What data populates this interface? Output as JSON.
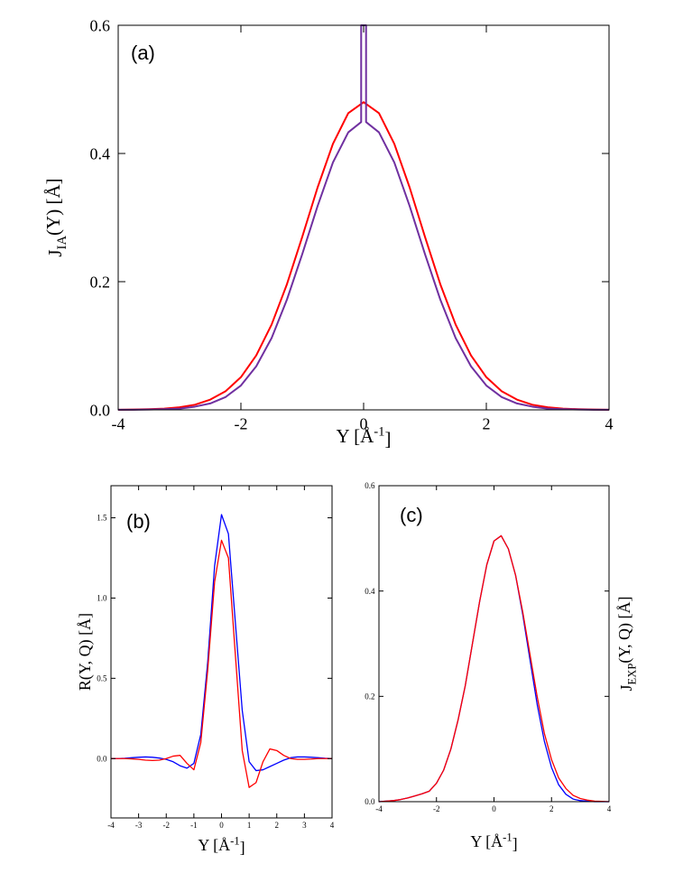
{
  "chart_data": [
    {
      "type": "line",
      "annotation": "(a)",
      "xlabel": [
        "Y [Å",
        "-1",
        "]"
      ],
      "ylabel": [
        "J",
        "IA",
        "(Y) [Å]"
      ],
      "xlim": [
        -4,
        4
      ],
      "ylim": [
        0,
        0.6
      ],
      "xticks": [
        -4,
        -2,
        0,
        2,
        4
      ],
      "yticks": [
        {
          "value": 0,
          "label": "0.0"
        },
        {
          "value": 0.2,
          "label": "0.2"
        },
        {
          "value": 0.4,
          "label": "0.4"
        },
        {
          "value": 0.6,
          "label": "0.6"
        }
      ],
      "x": [
        -4,
        -3.75,
        -3.5,
        -3.25,
        -3,
        -2.75,
        -2.5,
        -2.25,
        -2,
        -1.75,
        -1.5,
        -1.25,
        -1,
        -0.75,
        -0.5,
        -0.25,
        0,
        0.25,
        0.5,
        0.75,
        1,
        1.25,
        1.5,
        1.75,
        2,
        2.25,
        2.5,
        2.75,
        3,
        3.25,
        3.5,
        3.75,
        4
      ],
      "series": [
        {
          "color": "#ff0000",
          "values": [
            0.0002,
            0.0005,
            0.001,
            0.002,
            0.004,
            0.008,
            0.016,
            0.029,
            0.051,
            0.085,
            0.133,
            0.196,
            0.27,
            0.347,
            0.415,
            0.463,
            0.48,
            0.463,
            0.415,
            0.347,
            0.27,
            0.196,
            0.133,
            0.085,
            0.051,
            0.029,
            0.016,
            0.008,
            0.004,
            0.002,
            0.001,
            0.0005,
            0.0002
          ]
        },
        {
          "color": "#7030a0",
          "x": [
            -4,
            -3.75,
            -3.5,
            -3.25,
            -3,
            -2.75,
            -2.5,
            -2.25,
            -2,
            -1.75,
            -1.5,
            -1.25,
            -1,
            -0.75,
            -0.5,
            -0.25,
            -0.04,
            -0.04,
            0.04,
            0.04,
            0.25,
            0.5,
            0.75,
            1,
            1.25,
            1.5,
            1.75,
            2,
            2.25,
            2.5,
            2.75,
            3,
            3.25,
            3.5,
            3.75,
            4
          ],
          "values": [
            0.0001,
            0.0002,
            0.0005,
            0.001,
            0.002,
            0.005,
            0.01,
            0.02,
            0.038,
            0.068,
            0.112,
            0.172,
            0.243,
            0.318,
            0.386,
            0.433,
            0.449,
            0.6,
            0.6,
            0.449,
            0.433,
            0.386,
            0.318,
            0.243,
            0.172,
            0.112,
            0.068,
            0.038,
            0.02,
            0.01,
            0.005,
            0.002,
            0.001,
            0.0005,
            0.0002,
            0.0001
          ]
        }
      ]
    },
    {
      "type": "line",
      "annotation": "(b)",
      "xlabel": [
        "Y [Å",
        "-1",
        "]"
      ],
      "ylabel": [
        "R(Y, Q) [Å]"
      ],
      "xlim": [
        -4,
        4
      ],
      "ylim": [
        -0.37,
        1.7
      ],
      "xticks": [
        -4,
        -3,
        -2,
        -1,
        0,
        1,
        2,
        3,
        4
      ],
      "yticks": [
        {
          "value": 0,
          "label": "0.0"
        },
        {
          "value": 0.5,
          "label": "0.5"
        },
        {
          "value": 1,
          "label": "1.0"
        },
        {
          "value": 1.5,
          "label": "1.5"
        }
      ],
      "x": [
        -4,
        -3.75,
        -3.5,
        -3.25,
        -3,
        -2.75,
        -2.5,
        -2.25,
        -2,
        -1.75,
        -1.5,
        -1.25,
        -1,
        -0.75,
        -0.5,
        -0.25,
        0,
        0.25,
        0.5,
        0.75,
        1,
        1.25,
        1.5,
        1.75,
        2,
        2.25,
        2.5,
        2.75,
        3,
        3.25,
        3.5,
        3.75,
        4
      ],
      "series": [
        {
          "color": "#0000ff",
          "values": [
            0,
            0,
            0.002,
            0.005,
            0.008,
            0.01,
            0.008,
            0.003,
            -0.005,
            -0.02,
            -0.045,
            -0.06,
            -0.03,
            0.15,
            0.6,
            1.2,
            1.52,
            1.4,
            0.85,
            0.3,
            -0.02,
            -0.075,
            -0.07,
            -0.05,
            -0.03,
            -0.01,
            0.005,
            0.01,
            0.01,
            0.008,
            0.005,
            0.002,
            0
          ]
        },
        {
          "color": "#ff0000",
          "values": [
            0,
            0,
            0,
            -0.002,
            -0.005,
            -0.01,
            -0.012,
            -0.01,
            0,
            0.015,
            0.02,
            -0.03,
            -0.07,
            0.1,
            0.55,
            1.1,
            1.36,
            1.25,
            0.65,
            0.05,
            -0.18,
            -0.15,
            -0.02,
            0.06,
            0.05,
            0.02,
            0,
            -0.005,
            -0.005,
            -0.003,
            0,
            0,
            0
          ]
        }
      ]
    },
    {
      "type": "line",
      "annotation": "(c)",
      "xlabel": [
        "Y [Å",
        "-1",
        "]"
      ],
      "ylabel": [
        "J",
        "EXP",
        "(Y, Q) [Å]"
      ],
      "xlim": [
        -4,
        4
      ],
      "ylim": [
        0,
        0.6
      ],
      "xticks": [
        -4,
        -2,
        0,
        2,
        4
      ],
      "yticks": [
        {
          "value": 0,
          "label": "0.0"
        },
        {
          "value": 0.2,
          "label": "0.2"
        },
        {
          "value": 0.4,
          "label": "0.4"
        },
        {
          "value": 0.6,
          "label": "0.6"
        }
      ],
      "x": [
        -4,
        -3.75,
        -3.5,
        -3.25,
        -3,
        -2.75,
        -2.5,
        -2.25,
        -2,
        -1.75,
        -1.5,
        -1.25,
        -1,
        -0.75,
        -0.5,
        -0.25,
        0,
        0.25,
        0.5,
        0.75,
        1,
        1.25,
        1.5,
        1.75,
        2,
        2.25,
        2.5,
        2.75,
        3,
        3.25,
        3.5,
        3.75,
        4
      ],
      "series": [
        {
          "color": "#0000ff",
          "values": [
            0,
            0.001,
            0.002,
            0.004,
            0.007,
            0.011,
            0.015,
            0.02,
            0.035,
            0.06,
            0.1,
            0.155,
            0.22,
            0.3,
            0.38,
            0.45,
            0.495,
            0.505,
            0.48,
            0.43,
            0.355,
            0.27,
            0.185,
            0.115,
            0.065,
            0.032,
            0.014,
            0.005,
            0.002,
            0.001,
            0,
            0,
            0
          ]
        },
        {
          "color": "#ff0000",
          "values": [
            0,
            0.001,
            0.002,
            0.004,
            0.007,
            0.011,
            0.015,
            0.02,
            0.035,
            0.06,
            0.1,
            0.155,
            0.22,
            0.3,
            0.38,
            0.45,
            0.495,
            0.505,
            0.48,
            0.43,
            0.36,
            0.28,
            0.2,
            0.13,
            0.08,
            0.045,
            0.025,
            0.012,
            0.006,
            0.003,
            0.001,
            0.0005,
            0
          ]
        }
      ]
    }
  ]
}
